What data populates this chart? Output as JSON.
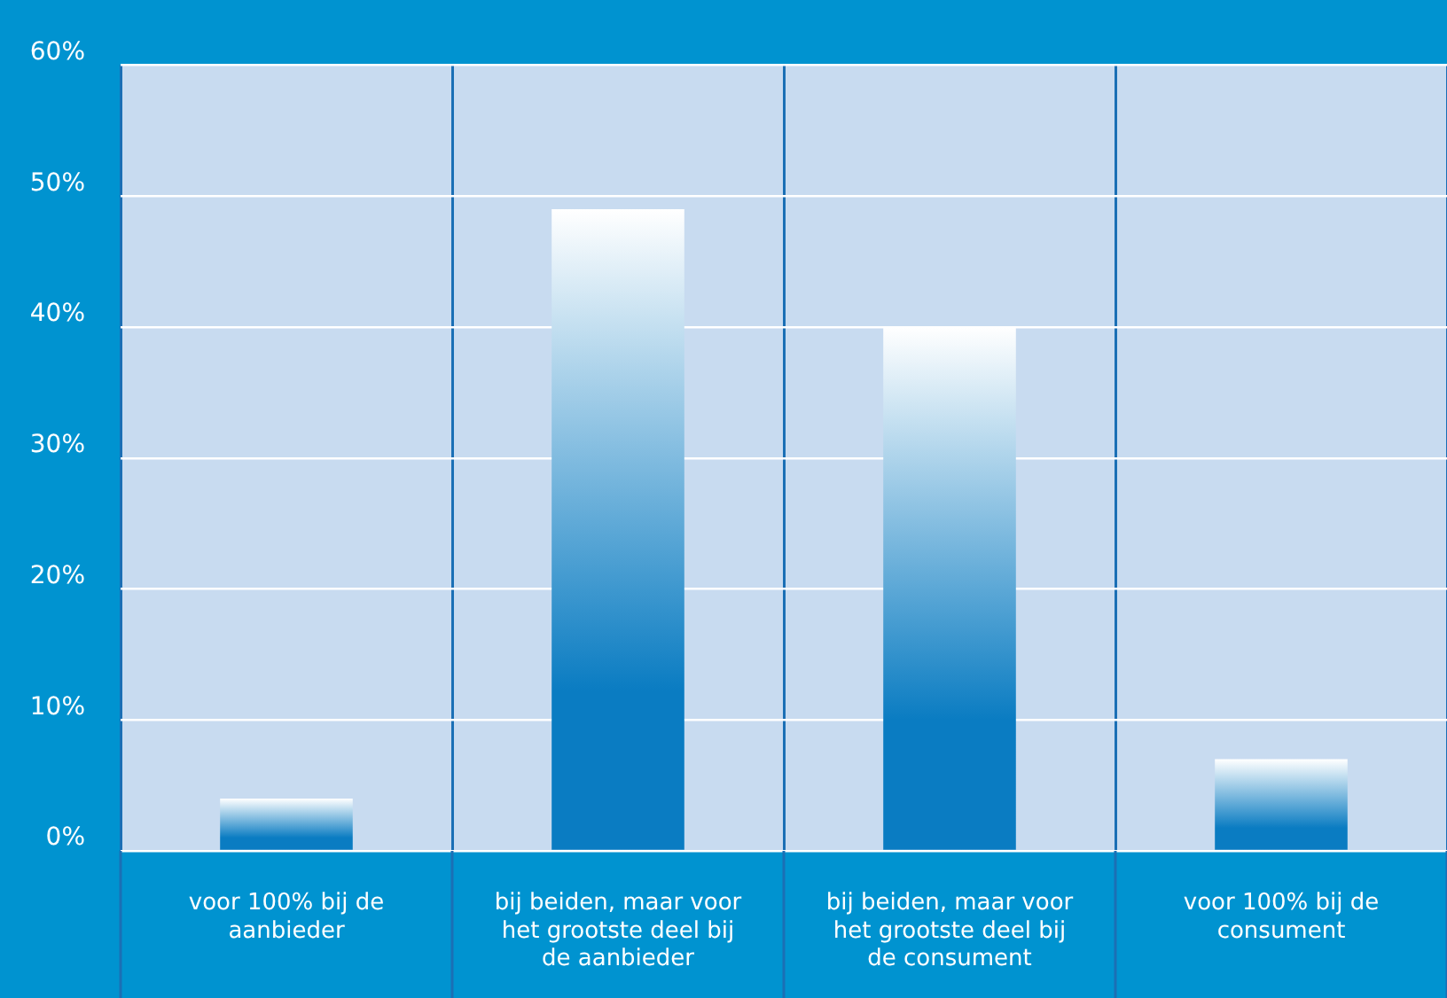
{
  "chart_data": {
    "type": "bar",
    "categories": [
      "voor 100% bij de aanbieder",
      "bij beiden, maar voor het grootste deel bij de aanbieder",
      "bij beiden, maar voor het grootste deel bij de consument",
      "voor 100% bij de consument"
    ],
    "values": [
      4,
      49,
      40,
      7
    ],
    "color": "#0a7cc2",
    "ylim": [
      0,
      60
    ],
    "yticks": [
      {
        "value": 0,
        "label": "0%"
      },
      {
        "value": 10,
        "label": "10%"
      },
      {
        "value": 20,
        "label": "20%"
      },
      {
        "value": 30,
        "label": "30%"
      },
      {
        "value": 40,
        "label": "40%"
      },
      {
        "value": 50,
        "label": "50%"
      },
      {
        "value": 60,
        "label": "60%"
      }
    ],
    "grid": true
  }
}
